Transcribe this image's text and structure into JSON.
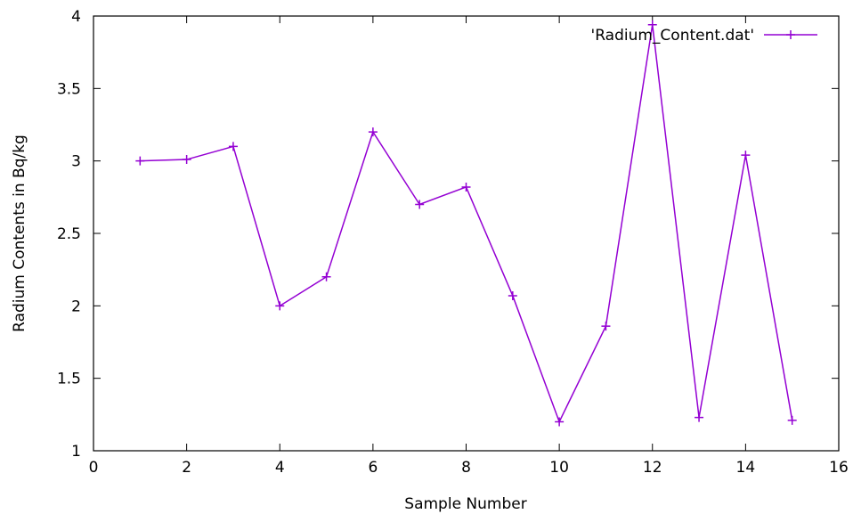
{
  "chart_data": {
    "type": "line",
    "title": "",
    "xlabel": "Sample Number",
    "ylabel": "Radium Contents in Bq/kg",
    "xlim": [
      0,
      16
    ],
    "ylim": [
      1,
      4
    ],
    "x_ticks": [
      0,
      2,
      4,
      6,
      8,
      10,
      12,
      14,
      16
    ],
    "y_ticks": [
      1,
      1.5,
      2,
      2.5,
      3,
      3.5,
      4
    ],
    "y_tick_labels": [
      "1",
      "1.5",
      "2",
      "2.5",
      "3",
      "3.5",
      "4"
    ],
    "grid": false,
    "legend_position": "top-right",
    "series": [
      {
        "name": "'Radium_Content.dat'",
        "color": "#9400d3",
        "marker": "plus",
        "x": [
          1,
          2,
          3,
          4,
          5,
          6,
          7,
          8,
          9,
          10,
          11,
          12,
          13,
          14,
          15
        ],
        "values": [
          3.0,
          3.01,
          3.1,
          2.0,
          2.2,
          3.2,
          2.7,
          2.82,
          2.07,
          1.2,
          1.86,
          3.94,
          1.23,
          3.04,
          1.21
        ]
      }
    ]
  }
}
